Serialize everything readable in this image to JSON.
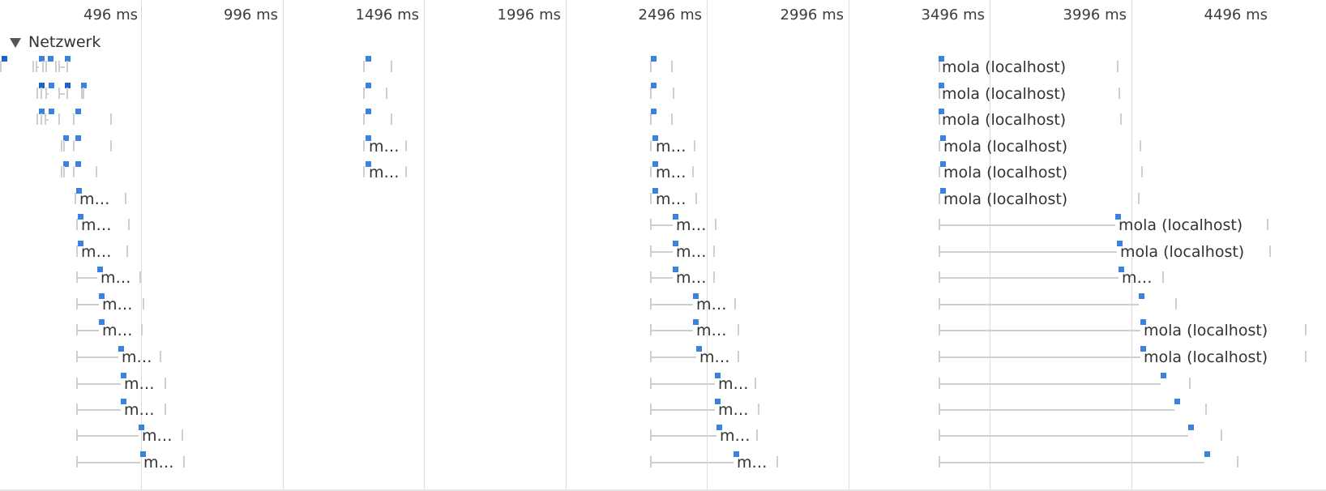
{
  "timeline": {
    "ticks": [
      "496 ms",
      "996 ms",
      "1496 ms",
      "1996 ms",
      "2496 ms",
      "2996 ms",
      "3496 ms",
      "3996 ms",
      "4496 ms"
    ],
    "track": {
      "title": "Netzwerk",
      "expanded": true
    },
    "request_label_full": "mola (localhost)",
    "request_label_short": "m…"
  },
  "colors": {
    "marker": "#3b82dd",
    "marker_dark": "#1e62c8",
    "whisker": "#cfcfcf",
    "grid": "#dcdcdc"
  }
}
